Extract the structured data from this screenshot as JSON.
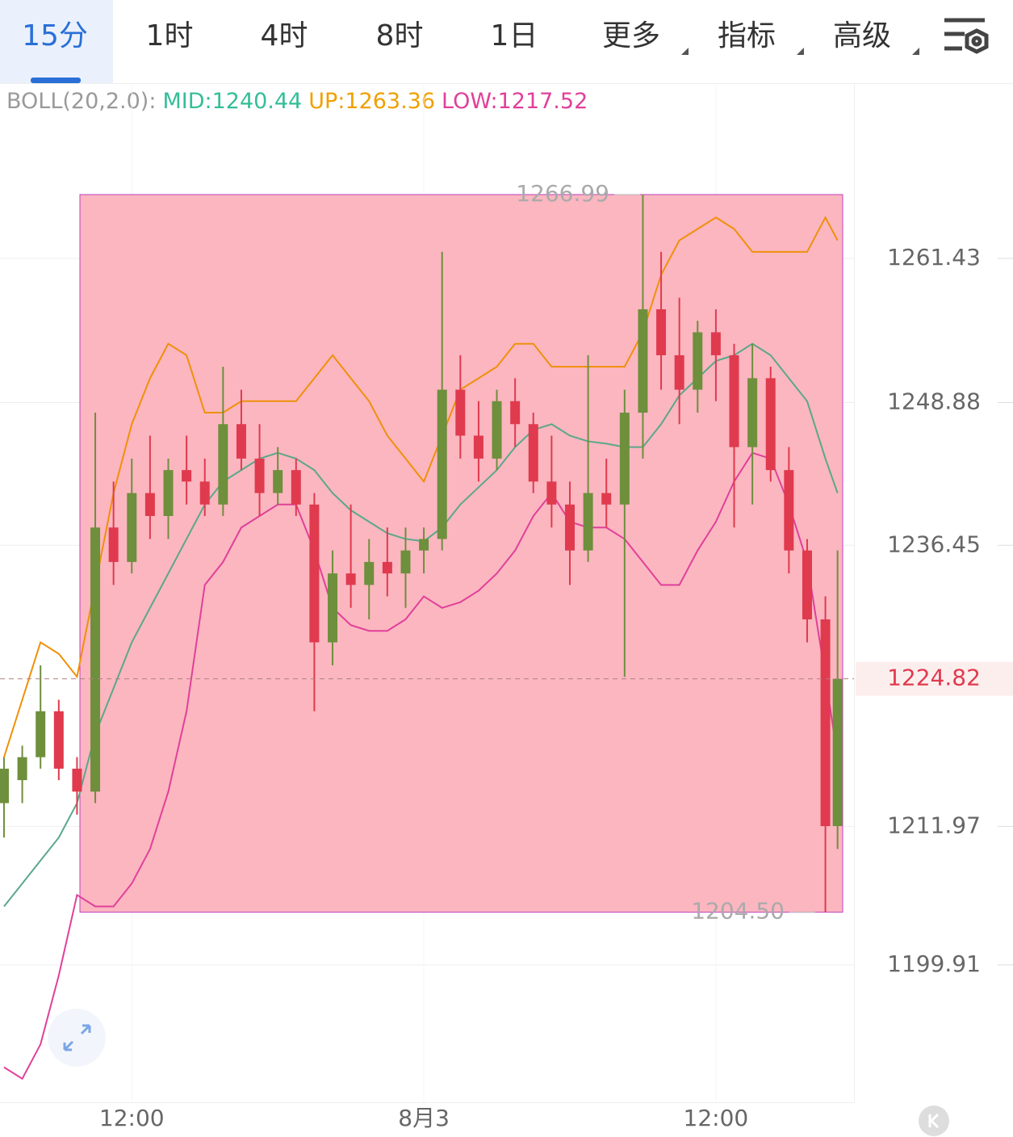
{
  "tabs": [
    "15分",
    "1时",
    "4时",
    "8时",
    "1日",
    "更多",
    "指标",
    "高级"
  ],
  "chart_data": {
    "type": "candlestick",
    "legend": [
      {
        "text": "BOLL(20,2.0):",
        "color": "#9a9a9a"
      },
      {
        "text": "MID:1240.44",
        "color": "#35bd98"
      },
      {
        "text": "UP:1263.36",
        "color": "#f0a000"
      },
      {
        "text": "LOW:1217.52",
        "color": "#e0409a"
      }
    ],
    "x": [
      0,
      3,
      6,
      9,
      12,
      15,
      18,
      21,
      24,
      27,
      30,
      33,
      36,
      39,
      42,
      45,
      48,
      51,
      54,
      57,
      60,
      63,
      66,
      69,
      72,
      75,
      78,
      81,
      84,
      87,
      90,
      93,
      96,
      99,
      102,
      105,
      108,
      111,
      114,
      117,
      120,
      123,
      126,
      129,
      132,
      135,
      137
    ],
    "open": [
      1214,
      1216,
      1218,
      1222,
      1217,
      1215,
      1238,
      1235,
      1241,
      1239,
      1243,
      1242,
      1240,
      1247,
      1244,
      1241,
      1243,
      1240,
      1228,
      1234,
      1233,
      1235,
      1234,
      1236,
      1237,
      1250,
      1246,
      1244,
      1249,
      1247,
      1242,
      1240,
      1236,
      1241,
      1240,
      1248,
      1257,
      1253,
      1250,
      1255,
      1253,
      1245,
      1251,
      1243,
      1236,
      1230,
      1212
    ],
    "high": [
      1218,
      1219,
      1226,
      1223,
      1218,
      1248,
      1242,
      1244,
      1246,
      1244,
      1246,
      1244,
      1252,
      1250,
      1247,
      1245,
      1244,
      1241,
      1236,
      1240,
      1237,
      1238,
      1238,
      1238,
      1262,
      1253,
      1249,
      1250,
      1251,
      1248,
      1246,
      1242,
      1253,
      1244,
      1250,
      1266.99,
      1262,
      1258,
      1256,
      1257,
      1254,
      1254,
      1252,
      1245,
      1237,
      1232,
      1236
    ],
    "low": [
      1211,
      1214,
      1217,
      1216,
      1213,
      1214,
      1233,
      1234,
      1237,
      1237,
      1240,
      1239,
      1239,
      1243,
      1239,
      1240,
      1239,
      1222,
      1226,
      1231,
      1230,
      1232,
      1231,
      1234,
      1236,
      1244,
      1242,
      1243,
      1245,
      1241,
      1238,
      1233,
      1235,
      1238,
      1225,
      1244,
      1250,
      1247,
      1248,
      1249,
      1238,
      1240,
      1242,
      1234,
      1228,
      1204.5,
      1210
    ],
    "close": [
      1217,
      1218,
      1222,
      1217,
      1215,
      1238,
      1235,
      1241,
      1239,
      1243,
      1242,
      1240,
      1247,
      1244,
      1241,
      1243,
      1240,
      1228,
      1234,
      1233,
      1235,
      1234,
      1236,
      1237,
      1250,
      1246,
      1244,
      1249,
      1247,
      1242,
      1240,
      1236,
      1241,
      1240,
      1248,
      1257,
      1253,
      1250,
      1255,
      1253,
      1245,
      1251,
      1243,
      1236,
      1230,
      1212,
      1224.82
    ],
    "up_color": "#6e8f3c",
    "down_color": "#e03a4e",
    "bands": [
      {
        "color": "#5aa889",
        "values": [
          1205,
          1207,
          1209,
          1211,
          1214,
          1220,
          1224,
          1228,
          1231,
          1234,
          1237,
          1240,
          1242,
          1243,
          1244,
          1244.5,
          1244,
          1243,
          1241,
          1239.5,
          1238.5,
          1237.5,
          1237,
          1236.8,
          1238,
          1240,
          1241.5,
          1243,
          1245,
          1246.5,
          1247,
          1246,
          1245.5,
          1245.3,
          1245,
          1245,
          1247,
          1249.5,
          1251,
          1252.5,
          1253,
          1254,
          1253,
          1251,
          1249,
          1244,
          1241
        ]
      },
      {
        "color": "#f0900a",
        "values": [
          1218,
          1223,
          1228,
          1227,
          1225,
          1233,
          1241,
          1247,
          1251,
          1254,
          1253,
          1248,
          1248,
          1249,
          1249,
          1249,
          1249,
          1251,
          1253,
          1251,
          1249,
          1246,
          1244,
          1242,
          1246,
          1250,
          1251,
          1252,
          1254,
          1254,
          1252,
          1252,
          1252,
          1252,
          1252,
          1255,
          1260,
          1263,
          1264,
          1265,
          1264,
          1262,
          1262,
          1262,
          1262,
          1265,
          1263
        ]
      },
      {
        "color": "#e0409a",
        "values": [
          1191,
          1190,
          1193,
          1199,
          1206,
          1205,
          1205,
          1207,
          1210,
          1215,
          1222,
          1233,
          1235,
          1238,
          1239,
          1240,
          1240,
          1236,
          1231,
          1229.5,
          1229,
          1229,
          1230,
          1232,
          1231,
          1231.5,
          1232.5,
          1234,
          1236,
          1239,
          1241,
          1238.5,
          1238,
          1238,
          1237,
          1235,
          1233,
          1233,
          1236,
          1238.5,
          1242,
          1244.5,
          1244,
          1240,
          1235,
          1225,
          1218
        ]
      }
    ],
    "xlim": [
      -0.66,
      139.7
    ],
    "xticks": [
      {
        "value": 21,
        "label": "12:00"
      },
      {
        "value": 69,
        "label": "8月3"
      },
      {
        "value": 117,
        "label": "12:00"
      }
    ],
    "ylim": [
      1187.95,
      1276.55
    ],
    "yticks": [
      1199.91,
      1211.97,
      1236.45,
      1248.88,
      1261.43
    ],
    "last_price": 1224.82,
    "annotations": [
      {
        "value": 1266.99,
        "label": "1266.99"
      },
      {
        "value": 1204.5,
        "label": "1204.50"
      }
    ],
    "grid": true
  }
}
